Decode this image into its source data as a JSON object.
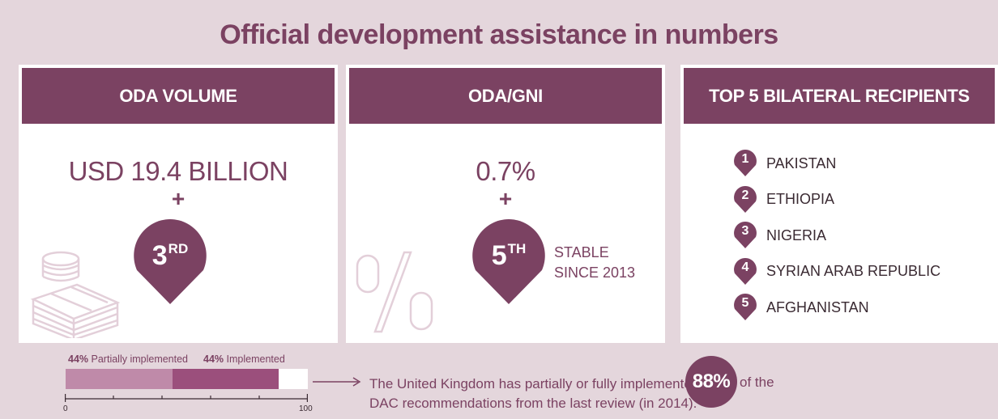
{
  "title": "Official development assistance in numbers",
  "panels": {
    "volume": {
      "header": "ODA VOLUME",
      "value": "USD 19.4 BILLION",
      "plus": "+",
      "rank_num": "3",
      "rank_suffix": "RD"
    },
    "gni": {
      "header": "ODA/GNI",
      "value": "0.7%",
      "plus": "+",
      "rank_num": "5",
      "rank_suffix": "TH",
      "note_line1": "STABLE",
      "note_line2": "SINCE 2013"
    },
    "recipients": {
      "header": "TOP 5 BILATERAL RECIPIENTS",
      "items": [
        {
          "num": "1",
          "name": "PAKISTAN"
        },
        {
          "num": "2",
          "name": "ETHIOPIA"
        },
        {
          "num": "3",
          "name": "NIGERIA"
        },
        {
          "num": "4",
          "name": "SYRIAN ARAB REPUBLIC"
        },
        {
          "num": "5",
          "name": "AFGHANISTAN"
        }
      ]
    }
  },
  "recommendations": {
    "partial_pct": "44%",
    "partial_label": "Partially implemented",
    "implemented_pct": "44%",
    "implemented_label": "Implemented",
    "partial_value": 44,
    "implemented_value": 44,
    "axis_min": "0",
    "axis_max": "100",
    "sentence_line1": "The United Kingdom has partially or fully implemented",
    "sentence_line2": "DAC recommendations from the last review (in 2014).",
    "total_pct": "88%",
    "sentence_tail": "of the"
  },
  "colors": {
    "primary": "#7b4262",
    "background": "#e4d6dc",
    "partial": "#bf8aa9",
    "implemented": "#9b4f7c"
  },
  "icons": {
    "volume_deco": "coins-and-banknotes-icon",
    "gni_deco": "percent-icon",
    "rank": "map-pin-icon"
  }
}
